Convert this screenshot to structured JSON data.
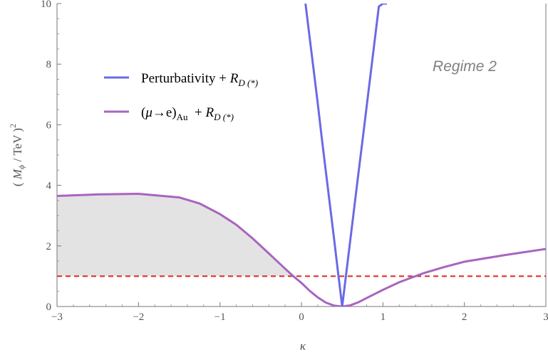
{
  "chart_data": {
    "type": "line",
    "xlabel": "κ",
    "ylabel_parts": {
      "open": "( ",
      "M": "M",
      "sub": "ϕ",
      "unit": " / TeV )",
      "exp": "2"
    },
    "xlim": [
      -3,
      3
    ],
    "ylim": [
      0,
      10
    ],
    "x_ticks": [
      -3,
      -2,
      -1,
      0,
      1,
      2,
      3
    ],
    "x_tick_labels": [
      "−3",
      "−2",
      "−1",
      "0",
      "1",
      "2",
      "3"
    ],
    "y_ticks": [
      0,
      2,
      4,
      6,
      8,
      10
    ],
    "y_tick_labels": [
      "0",
      "2",
      "4",
      "6",
      "8",
      "10"
    ],
    "grid": false,
    "annotation": "Regime 2",
    "colors": {
      "perturbativity": "#6A6AE6",
      "mue": "#A865BF",
      "threshold": "#E02424",
      "shade": "#E3E3E3"
    },
    "series": [
      {
        "key": "perturbativity",
        "x": [
          0.05,
          0.1,
          0.15,
          0.2,
          0.25,
          0.3,
          0.35,
          0.4,
          0.45,
          0.5,
          0.55,
          0.6,
          0.65,
          0.7,
          0.75,
          0.8,
          0.85,
          0.9,
          0.95,
          1.0,
          1.05
        ],
        "y": [
          10.0,
          8.9,
          7.8,
          6.7,
          5.55,
          4.45,
          3.35,
          2.25,
          1.1,
          0.0,
          1.1,
          2.2,
          3.3,
          4.4,
          5.5,
          6.6,
          7.7,
          8.8,
          9.9,
          10.0,
          10.0
        ]
      },
      {
        "key": "mue",
        "x": [
          -3.0,
          -2.5,
          -2.0,
          -1.5,
          -1.25,
          -1.0,
          -0.8,
          -0.6,
          -0.4,
          -0.2,
          -0.1,
          0.0,
          0.1,
          0.2,
          0.3,
          0.4,
          0.5,
          0.6,
          0.7,
          0.8,
          1.0,
          1.2,
          1.5,
          1.75,
          2.0,
          2.5,
          3.0
        ],
        "y": [
          3.65,
          3.7,
          3.72,
          3.6,
          3.4,
          3.05,
          2.7,
          2.25,
          1.75,
          1.25,
          1.0,
          0.78,
          0.52,
          0.3,
          0.13,
          0.03,
          0.0,
          0.04,
          0.14,
          0.28,
          0.55,
          0.8,
          1.1,
          1.3,
          1.48,
          1.7,
          1.9
        ]
      }
    ],
    "threshold_y": 1.0,
    "shaded_region": {
      "x_from": -3,
      "upper_series": "mue",
      "lower_y": 1.0
    }
  },
  "legend": {
    "perturbativity": {
      "label": "Perturbativity + ",
      "r": "R",
      "sub": "D (*)"
    },
    "mue": {
      "open": "(",
      "mu": "μ",
      "arrow": "→e)",
      "sub_au": "Au",
      "plus": "  + ",
      "r": "R",
      "sub": "D (*)"
    }
  }
}
